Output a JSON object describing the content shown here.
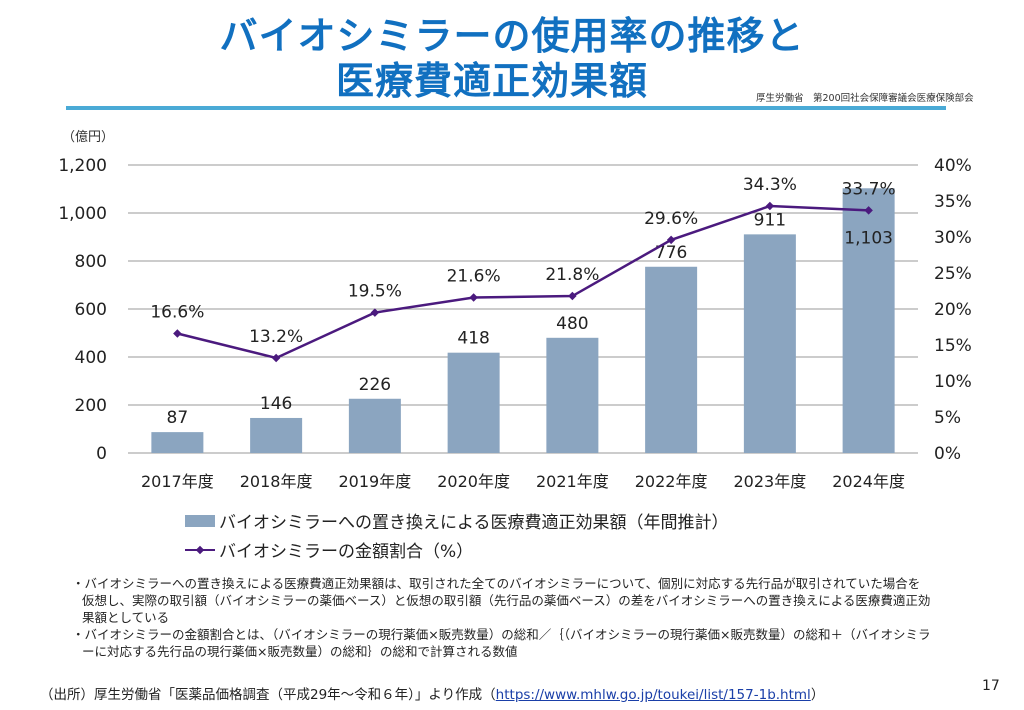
{
  "slide": {
    "title_line1": "バイオシミラーの使用率の推移と",
    "title_line2": "医療費適正効果額",
    "source_header": "厚生労働省　第200回社会保障審議会医療保険部会",
    "page_number": "17",
    "colors": {
      "title": "#1170c0",
      "rule": "#4aaad6",
      "bar": "#8ba5c0",
      "line": "#4b1a7e",
      "grid": "#9a9a9a"
    }
  },
  "chart_data": {
    "type": "bar+line",
    "title": "",
    "unit_label": "（億円）",
    "categories": [
      "2017年度",
      "2018年度",
      "2019年度",
      "2020年度",
      "2021年度",
      "2022年度",
      "2023年度",
      "2024年度"
    ],
    "series": [
      {
        "name": "バイオシミラーへの置き換えによる医療費適正効果額（年間推計）",
        "type": "bar",
        "axis": "left",
        "values": [
          87,
          146,
          226,
          418,
          480,
          776,
          911,
          1103
        ],
        "labels": [
          "87",
          "146",
          "226",
          "418",
          "480",
          "776",
          "911",
          "1,103"
        ]
      },
      {
        "name": "バイオシミラーの金額割合（%）",
        "type": "line",
        "axis": "right",
        "values": [
          16.6,
          13.2,
          19.5,
          21.6,
          21.8,
          29.6,
          34.3,
          33.7
        ],
        "labels": [
          "16.6%",
          "13.2%",
          "19.5%",
          "21.6%",
          "21.8%",
          "29.6%",
          "34.3%",
          "33.7%"
        ]
      }
    ],
    "y_left": {
      "min": 0,
      "max": 1200,
      "ticks": [
        "0",
        "200",
        "400",
        "600",
        "800",
        "1,000",
        "1,200"
      ]
    },
    "y_right": {
      "min": 0,
      "max": 40,
      "ticks": [
        "0%",
        "5%",
        "10%",
        "15%",
        "20%",
        "25%",
        "30%",
        "35%",
        "40%"
      ]
    },
    "grid": true,
    "legend_position": "bottom"
  },
  "notes": [
    "・バイオシミラーへの置き換えによる医療費適正効果額は、取引された全てのバイオシミラーについて、個別に対応する先行品が取引されていた場合を仮想し、実際の取引額（バイオシミラーの薬価ベース）と仮想の取引額（先行品の薬価ベース）の差をバイオシミラーへの置き換えによる医療費適正効果額としている",
    "・バイオシミラーの金額割合とは、（バイオシミラーの現行薬価×販売数量）の総和／｛（バイオシミラーの現行薬価×販売数量）の総和＋（バイオシミラーに対応する先行品の現行薬価×販売数量）の総和｝の総和で計算される数値"
  ],
  "footer": {
    "prefix": "（出所）厚生労働省「医薬品価格調査（平成29年～令和６年）」より作成（",
    "link": "https://www.mhlw.go.jp/toukei/list/157-1b.html",
    "suffix": "）"
  }
}
